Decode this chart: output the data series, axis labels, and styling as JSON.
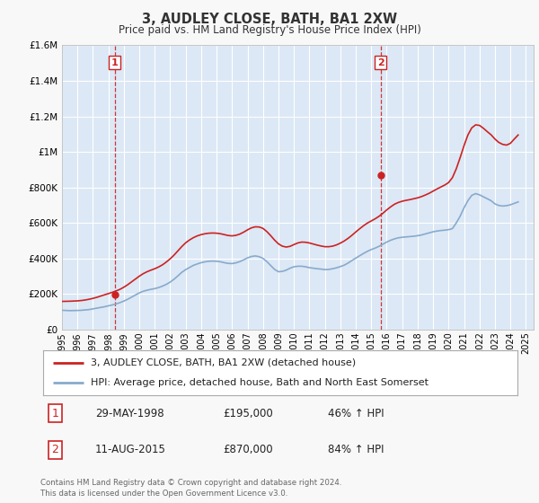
{
  "title": "3, AUDLEY CLOSE, BATH, BA1 2XW",
  "subtitle": "Price paid vs. HM Land Registry's House Price Index (HPI)",
  "legend_line1": "3, AUDLEY CLOSE, BATH, BA1 2XW (detached house)",
  "legend_line2": "HPI: Average price, detached house, Bath and North East Somerset",
  "footnote": "Contains HM Land Registry data © Crown copyright and database right 2024.\nThis data is licensed under the Open Government Licence v3.0.",
  "table_row1": [
    "1",
    "29-MAY-1998",
    "£195,000",
    "46% ↑ HPI"
  ],
  "table_row2": [
    "2",
    "11-AUG-2015",
    "£870,000",
    "84% ↑ HPI"
  ],
  "property_color": "#cc2222",
  "hpi_color": "#88aacc",
  "marker_vline_color": "#cc2222",
  "background_color": "#f8f8f8",
  "plot_bg_color": "#dce8f5",
  "grid_color": "#ffffff",
  "ylim": [
    0,
    1600000
  ],
  "yticks": [
    0,
    200000,
    400000,
    600000,
    800000,
    1000000,
    1200000,
    1400000,
    1600000
  ],
  "ytick_labels": [
    "£0",
    "£200K",
    "£400K",
    "£600K",
    "£800K",
    "£1M",
    "£1.2M",
    "£1.4M",
    "£1.6M"
  ],
  "xmin": 1995.0,
  "xmax": 2025.5,
  "sale1_x": 1998.41,
  "sale1_y": 195000,
  "sale2_x": 2015.61,
  "sale2_y": 870000,
  "hpi_years": [
    1995.0,
    1995.25,
    1995.5,
    1995.75,
    1996.0,
    1996.25,
    1996.5,
    1996.75,
    1997.0,
    1997.25,
    1997.5,
    1997.75,
    1998.0,
    1998.25,
    1998.5,
    1998.75,
    1999.0,
    1999.25,
    1999.5,
    1999.75,
    2000.0,
    2000.25,
    2000.5,
    2000.75,
    2001.0,
    2001.25,
    2001.5,
    2001.75,
    2002.0,
    2002.25,
    2002.5,
    2002.75,
    2003.0,
    2003.25,
    2003.5,
    2003.75,
    2004.0,
    2004.25,
    2004.5,
    2004.75,
    2005.0,
    2005.25,
    2005.5,
    2005.75,
    2006.0,
    2006.25,
    2006.5,
    2006.75,
    2007.0,
    2007.25,
    2007.5,
    2007.75,
    2008.0,
    2008.25,
    2008.5,
    2008.75,
    2009.0,
    2009.25,
    2009.5,
    2009.75,
    2010.0,
    2010.25,
    2010.5,
    2010.75,
    2011.0,
    2011.25,
    2011.5,
    2011.75,
    2012.0,
    2012.25,
    2012.5,
    2012.75,
    2013.0,
    2013.25,
    2013.5,
    2013.75,
    2014.0,
    2014.25,
    2014.5,
    2014.75,
    2015.0,
    2015.25,
    2015.5,
    2015.75,
    2016.0,
    2016.25,
    2016.5,
    2016.75,
    2017.0,
    2017.25,
    2017.5,
    2017.75,
    2018.0,
    2018.25,
    2018.5,
    2018.75,
    2019.0,
    2019.25,
    2019.5,
    2019.75,
    2020.0,
    2020.25,
    2020.5,
    2020.75,
    2021.0,
    2021.25,
    2021.5,
    2021.75,
    2022.0,
    2022.25,
    2022.5,
    2022.75,
    2023.0,
    2023.25,
    2023.5,
    2023.75,
    2024.0,
    2024.25,
    2024.5
  ],
  "hpi_values": [
    108000,
    107000,
    106000,
    106500,
    107000,
    108000,
    110000,
    112000,
    116000,
    120000,
    124000,
    128000,
    133000,
    138000,
    144000,
    151000,
    160000,
    170000,
    182000,
    194000,
    206000,
    215000,
    221000,
    226000,
    230000,
    236000,
    244000,
    254000,
    267000,
    283000,
    302000,
    322000,
    337000,
    349000,
    361000,
    369000,
    376000,
    381000,
    384000,
    385000,
    384000,
    381000,
    376000,
    372000,
    371000,
    375000,
    382000,
    392000,
    403000,
    411000,
    414000,
    410000,
    400000,
    382000,
    360000,
    338000,
    325000,
    327000,
    334000,
    345000,
    353000,
    356000,
    356000,
    353000,
    348000,
    345000,
    342000,
    340000,
    337000,
    338000,
    342000,
    347000,
    354000,
    362000,
    374000,
    388000,
    402000,
    415000,
    428000,
    440000,
    450000,
    458000,
    468000,
    480000,
    492000,
    502000,
    510000,
    516000,
    519000,
    521000,
    523000,
    525000,
    528000,
    532000,
    538000,
    544000,
    550000,
    554000,
    557000,
    559000,
    562000,
    568000,
    600000,
    638000,
    685000,
    725000,
    755000,
    765000,
    758000,
    747000,
    736000,
    725000,
    707000,
    698000,
    695000,
    697000,
    702000,
    710000,
    718000
  ],
  "prop_years": [
    1995.0,
    1995.25,
    1995.5,
    1995.75,
    1996.0,
    1996.25,
    1996.5,
    1996.75,
    1997.0,
    1997.25,
    1997.5,
    1997.75,
    1998.0,
    1998.25,
    1998.5,
    1998.75,
    1999.0,
    1999.25,
    1999.5,
    1999.75,
    2000.0,
    2000.25,
    2000.5,
    2000.75,
    2001.0,
    2001.25,
    2001.5,
    2001.75,
    2002.0,
    2002.25,
    2002.5,
    2002.75,
    2003.0,
    2003.25,
    2003.5,
    2003.75,
    2004.0,
    2004.25,
    2004.5,
    2004.75,
    2005.0,
    2005.25,
    2005.5,
    2005.75,
    2006.0,
    2006.25,
    2006.5,
    2006.75,
    2007.0,
    2007.25,
    2007.5,
    2007.75,
    2008.0,
    2008.25,
    2008.5,
    2008.75,
    2009.0,
    2009.25,
    2009.5,
    2009.75,
    2010.0,
    2010.25,
    2010.5,
    2010.75,
    2011.0,
    2011.25,
    2011.5,
    2011.75,
    2012.0,
    2012.25,
    2012.5,
    2012.75,
    2013.0,
    2013.25,
    2013.5,
    2013.75,
    2014.0,
    2014.25,
    2014.5,
    2014.75,
    2015.0,
    2015.25,
    2015.5,
    2015.75,
    2016.0,
    2016.25,
    2016.5,
    2016.75,
    2017.0,
    2017.25,
    2017.5,
    2017.75,
    2018.0,
    2018.25,
    2018.5,
    2018.75,
    2019.0,
    2019.25,
    2019.5,
    2019.75,
    2020.0,
    2020.25,
    2020.5,
    2020.75,
    2021.0,
    2021.25,
    2021.5,
    2021.75,
    2022.0,
    2022.25,
    2022.5,
    2022.75,
    2023.0,
    2023.25,
    2023.5,
    2023.75,
    2024.0,
    2024.25,
    2024.5
  ],
  "prop_values": [
    158000,
    158500,
    159000,
    160000,
    161000,
    163000,
    166000,
    170000,
    175000,
    181000,
    188000,
    195000,
    202000,
    209000,
    217000,
    226000,
    238000,
    252000,
    268000,
    284000,
    300000,
    314000,
    325000,
    334000,
    342000,
    352000,
    364000,
    380000,
    398000,
    419000,
    443000,
    467000,
    488000,
    504000,
    517000,
    527000,
    534000,
    539000,
    542000,
    543000,
    542000,
    539000,
    534000,
    529000,
    527000,
    530000,
    537000,
    548000,
    561000,
    572000,
    578000,
    577000,
    569000,
    551000,
    528000,
    503000,
    482000,
    469000,
    464000,
    468000,
    478000,
    487000,
    492000,
    491000,
    487000,
    481000,
    475000,
    470000,
    466000,
    466000,
    469000,
    476000,
    486000,
    498000,
    513000,
    530000,
    549000,
    567000,
    584000,
    599000,
    611000,
    623000,
    637000,
    654000,
    673000,
    690000,
    705000,
    715000,
    722000,
    727000,
    731000,
    736000,
    741000,
    748000,
    757000,
    767000,
    779000,
    791000,
    802000,
    813000,
    827000,
    855000,
    905000,
    968000,
    1035000,
    1095000,
    1135000,
    1152000,
    1149000,
    1133000,
    1114000,
    1096000,
    1072000,
    1053000,
    1042000,
    1038000,
    1048000,
    1072000,
    1095000
  ],
  "marker1_label": "1",
  "marker2_label": "2"
}
